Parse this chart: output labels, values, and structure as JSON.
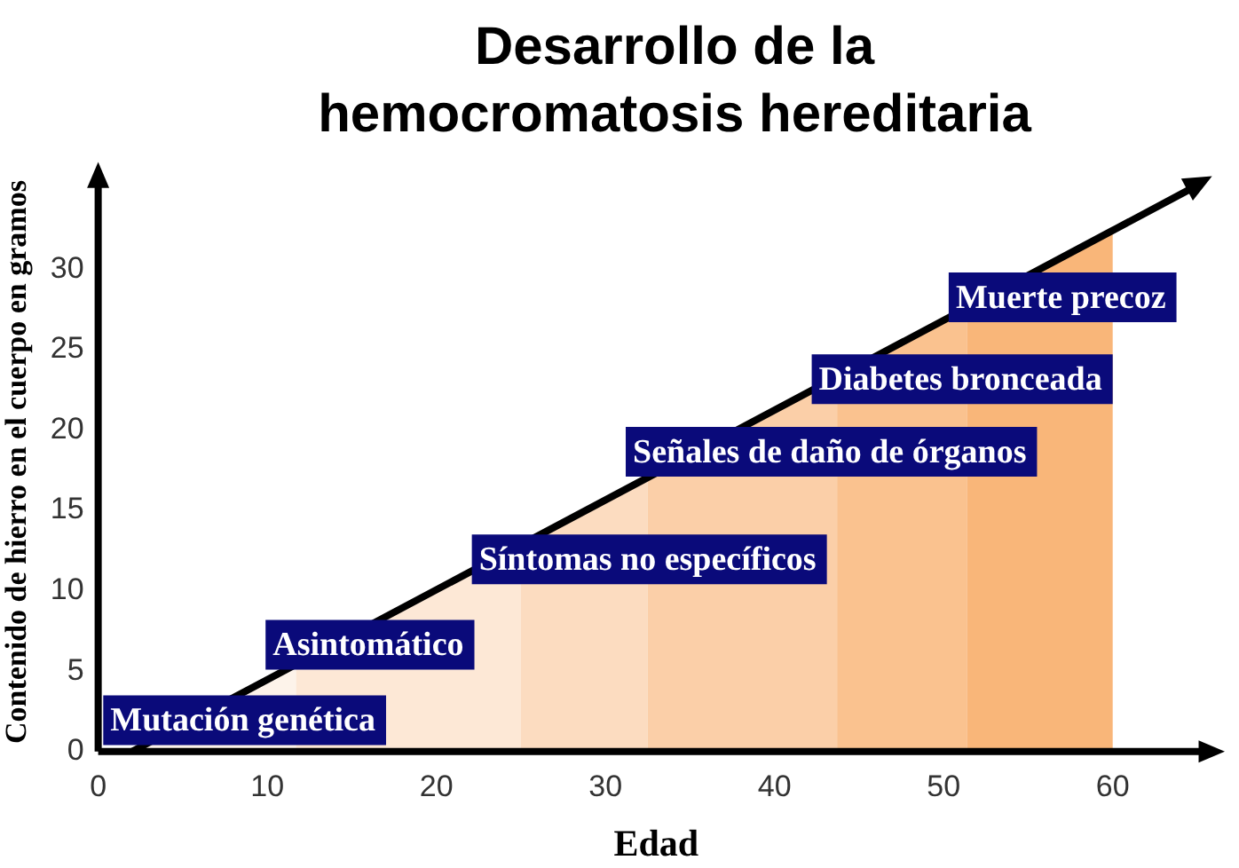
{
  "chart_data": {
    "type": "line",
    "title": "Desarrollo de la hemocromatosis hereditaria",
    "xlabel": "Edad",
    "ylabel": "Contenido de hierro en el cuerpo en gramos",
    "x": [
      2,
      60,
      65
    ],
    "series": [
      {
        "color": "#000000",
        "values": [
          0,
          32.4,
          35.2
        ]
      }
    ],
    "xlim": [
      0,
      66
    ],
    "xticks": [
      0,
      10,
      20,
      30,
      40,
      50,
      60
    ],
    "ylim": [
      0,
      36
    ],
    "yticks": [
      0,
      5,
      10,
      15,
      20,
      25,
      30
    ],
    "grid": false,
    "legend": false,
    "marker": "none",
    "line_style": "solid",
    "bands": [
      {
        "axis": "x",
        "from": 2,
        "to": 11.7,
        "color": "#fdf3ea"
      },
      {
        "axis": "x",
        "from": 11.7,
        "to": 25,
        "color": "#fde8d6"
      },
      {
        "axis": "x",
        "from": 25,
        "to": 32.5,
        "color": "#fcdcc0"
      },
      {
        "axis": "x",
        "from": 32.5,
        "to": 43.7,
        "color": "#fbcfa8"
      },
      {
        "axis": "x",
        "from": 43.7,
        "to": 51.4,
        "color": "#fac28f"
      },
      {
        "axis": "x",
        "from": 51.4,
        "to": 60,
        "color": "#f9b679"
      }
    ],
    "annotations": [
      "Mutación genética",
      "Asintomático",
      "Síntomas no específicos",
      "Señales de daño de órganos",
      "Diabetes bronceada",
      "Muerte precoz"
    ]
  }
}
